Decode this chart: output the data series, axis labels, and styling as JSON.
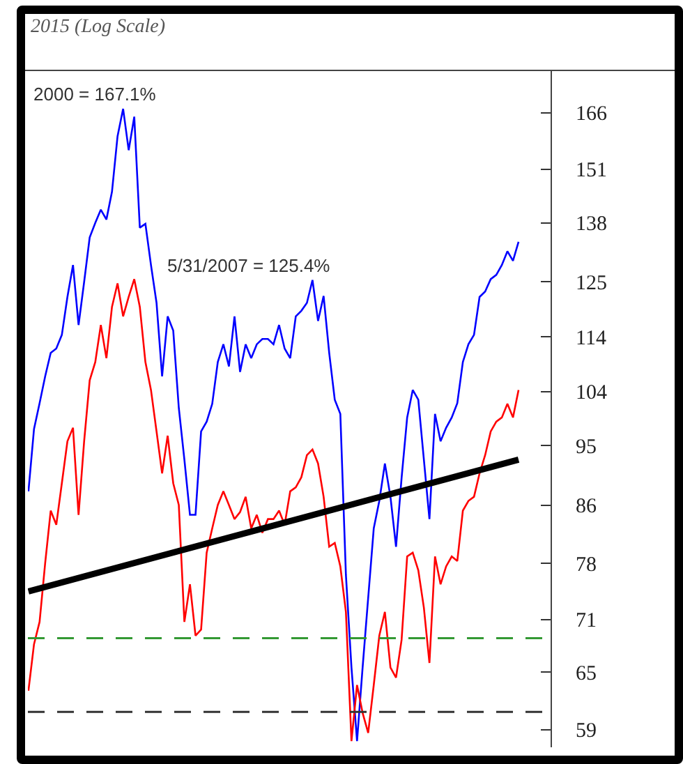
{
  "chart_data": {
    "type": "line",
    "title": "2015 (Log Scale)",
    "log": "y",
    "tick_labels": "y",
    "ylim": [
      57.3,
      178
    ],
    "yticks": [
      59,
      65,
      71,
      78,
      86,
      95,
      104,
      114,
      125,
      138,
      151,
      166
    ],
    "categories": [
      null,
      null,
      null,
      null,
      null,
      null,
      null,
      null,
      null,
      null,
      null,
      null,
      null,
      null,
      null,
      null,
      null,
      null,
      null,
      null,
      null,
      null,
      null,
      null,
      null,
      null,
      null,
      null,
      null,
      null,
      null,
      null,
      null,
      null,
      null,
      null,
      null,
      null,
      null,
      null,
      null,
      null,
      null,
      null,
      null,
      null,
      null,
      null,
      null,
      null,
      null,
      null,
      null,
      null,
      null,
      null,
      null,
      null,
      null,
      null,
      null,
      null,
      null,
      null,
      null,
      null,
      null,
      null,
      null,
      null,
      null,
      null,
      null,
      null,
      null,
      null,
      null,
      null,
      null,
      null,
      null,
      null,
      null,
      null,
      null,
      null,
      null,
      null,
      null
    ],
    "series": [
      {
        "color": "#0000ff",
        "values": [
          88.0,
          97.7,
          102.0,
          106.7,
          111.0,
          111.8,
          114.4,
          121.9,
          128.6,
          116.3,
          125.0,
          134.7,
          138.0,
          141.1,
          138.8,
          145.4,
          159.6,
          167.1,
          155.9,
          164.9,
          136.9,
          137.8,
          128.6,
          120.7,
          106.7,
          118.0,
          115.2,
          101.2,
          92.8,
          84.6,
          84.6,
          97.3,
          98.9,
          101.9,
          109.3,
          112.6,
          108.5,
          118.0,
          107.5,
          112.6,
          110.0,
          112.6,
          113.6,
          113.6,
          112.6,
          116.3,
          111.8,
          110.0,
          118.0,
          119.1,
          120.7,
          125.4,
          117.1,
          122.1,
          111.0,
          102.6,
          100.2,
          76.5,
          65.5,
          57.9,
          65.5,
          73.6,
          82.7,
          86.6,
          92.2,
          87.2,
          80.2,
          90.0,
          99.6,
          104.3,
          102.6,
          92.8,
          84.0,
          100.2,
          95.7,
          97.9,
          99.6,
          102.0,
          109.3,
          112.6,
          114.4,
          121.9,
          123.0,
          125.6,
          126.5,
          128.6,
          131.6,
          129.5,
          133.7
        ]
      },
      {
        "color": "#ff0000",
        "values": [
          63.0,
          68.1,
          70.7,
          78.0,
          85.2,
          83.2,
          89.2,
          95.7,
          97.9,
          84.6,
          95.7,
          106.0,
          109.3,
          116.3,
          110.0,
          119.9,
          124.7,
          118.0,
          121.9,
          125.6,
          119.9,
          109.3,
          104.3,
          97.3,
          90.7,
          96.6,
          89.2,
          86.0,
          70.7,
          75.3,
          69.1,
          69.8,
          79.4,
          82.7,
          86.0,
          88.0,
          86.0,
          84.0,
          85.0,
          87.2,
          82.7,
          84.6,
          82.1,
          84.0,
          84.0,
          85.2,
          83.2,
          88.0,
          88.6,
          90.1,
          93.5,
          94.4,
          92.2,
          87.2,
          80.2,
          80.7,
          77.6,
          71.9,
          57.9,
          63.6,
          60.7,
          58.7,
          63.6,
          69.1,
          71.9,
          65.5,
          64.4,
          68.6,
          78.9,
          79.4,
          77.1,
          72.4,
          66.0,
          78.9,
          75.3,
          77.6,
          78.9,
          78.3,
          85.2,
          86.6,
          87.2,
          90.7,
          93.5,
          97.3,
          98.9,
          99.6,
          101.9,
          99.6,
          104.3
        ]
      },
      {
        "type": "line",
        "color": "#000000",
        "values": [
          74.4,
          null,
          null,
          null,
          null,
          null,
          null,
          null,
          null,
          null,
          null,
          null,
          null,
          null,
          null,
          null,
          null,
          null,
          null,
          null,
          null,
          null,
          null,
          null,
          null,
          null,
          null,
          null,
          null,
          null,
          null,
          null,
          null,
          null,
          null,
          null,
          null,
          null,
          null,
          null,
          null,
          null,
          null,
          null,
          null,
          null,
          null,
          null,
          null,
          null,
          null,
          null,
          null,
          null,
          null,
          null,
          null,
          null,
          null,
          null,
          null,
          null,
          null,
          null,
          null,
          null,
          null,
          null,
          null,
          null,
          null,
          null,
          null,
          null,
          null,
          null,
          null,
          null,
          null,
          null,
          null,
          null,
          null,
          null,
          null,
          null,
          null,
          null,
          92.8
        ]
      }
    ],
    "ref_lines": [
      {
        "axis": "y",
        "value": 68.8,
        "color": "#339933",
        "line_style": "dashed"
      },
      {
        "axis": "y",
        "value": 60.8,
        "color": "#333333",
        "line_style": "dashed"
      }
    ],
    "annotations": [
      "2000 = 167.1%",
      "5/31/2007 = 125.4%"
    ]
  }
}
